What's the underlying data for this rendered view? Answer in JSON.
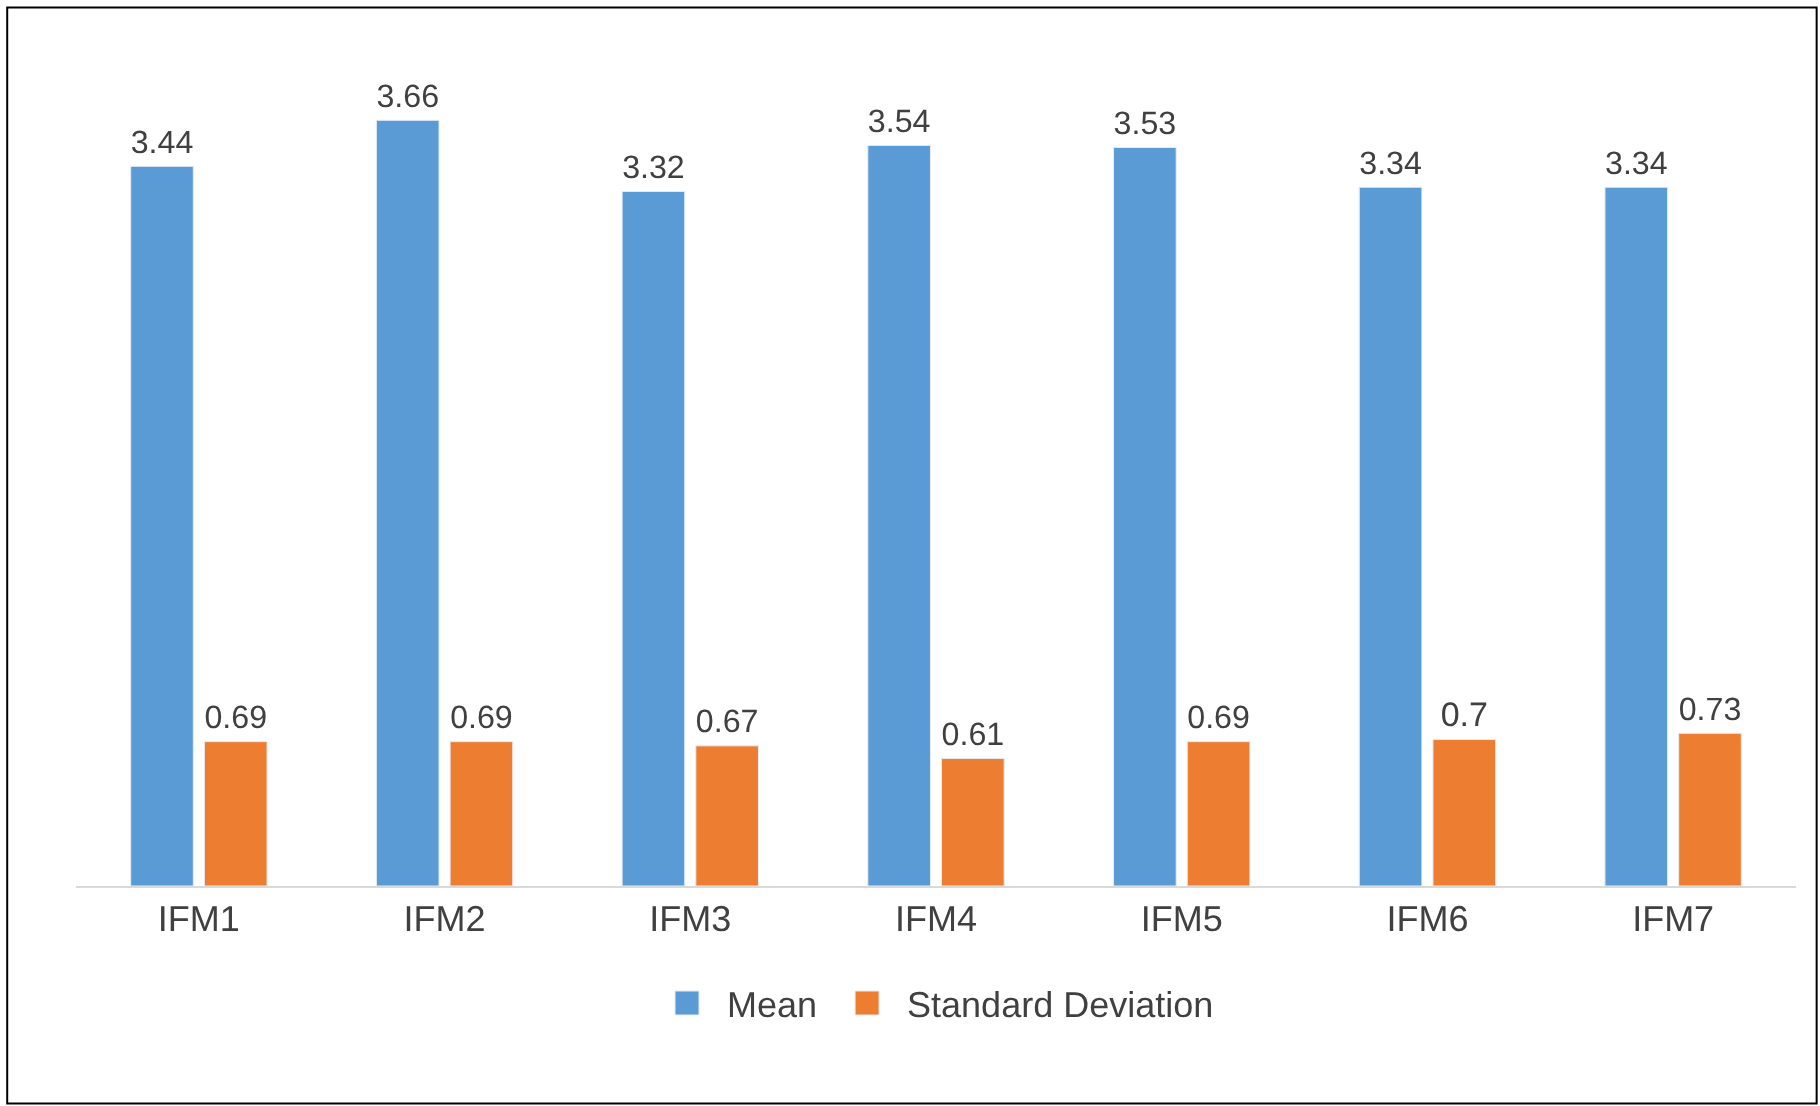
{
  "chart_data": {
    "type": "bar",
    "categories": [
      "IFM1",
      "IFM2",
      "IFM3",
      "IFM4",
      "IFM5",
      "IFM6",
      "IFM7"
    ],
    "series": [
      {
        "name": "Mean",
        "color": "#5b9bd5",
        "values": [
          3.44,
          3.66,
          3.32,
          3.54,
          3.53,
          3.34,
          3.34
        ]
      },
      {
        "name": "Standard Deviation",
        "color": "#ed7d31",
        "values": [
          0.69,
          0.69,
          0.67,
          0.61,
          0.69,
          0.7,
          0.73
        ]
      }
    ],
    "data_labels": true,
    "legend": "bottom"
  }
}
